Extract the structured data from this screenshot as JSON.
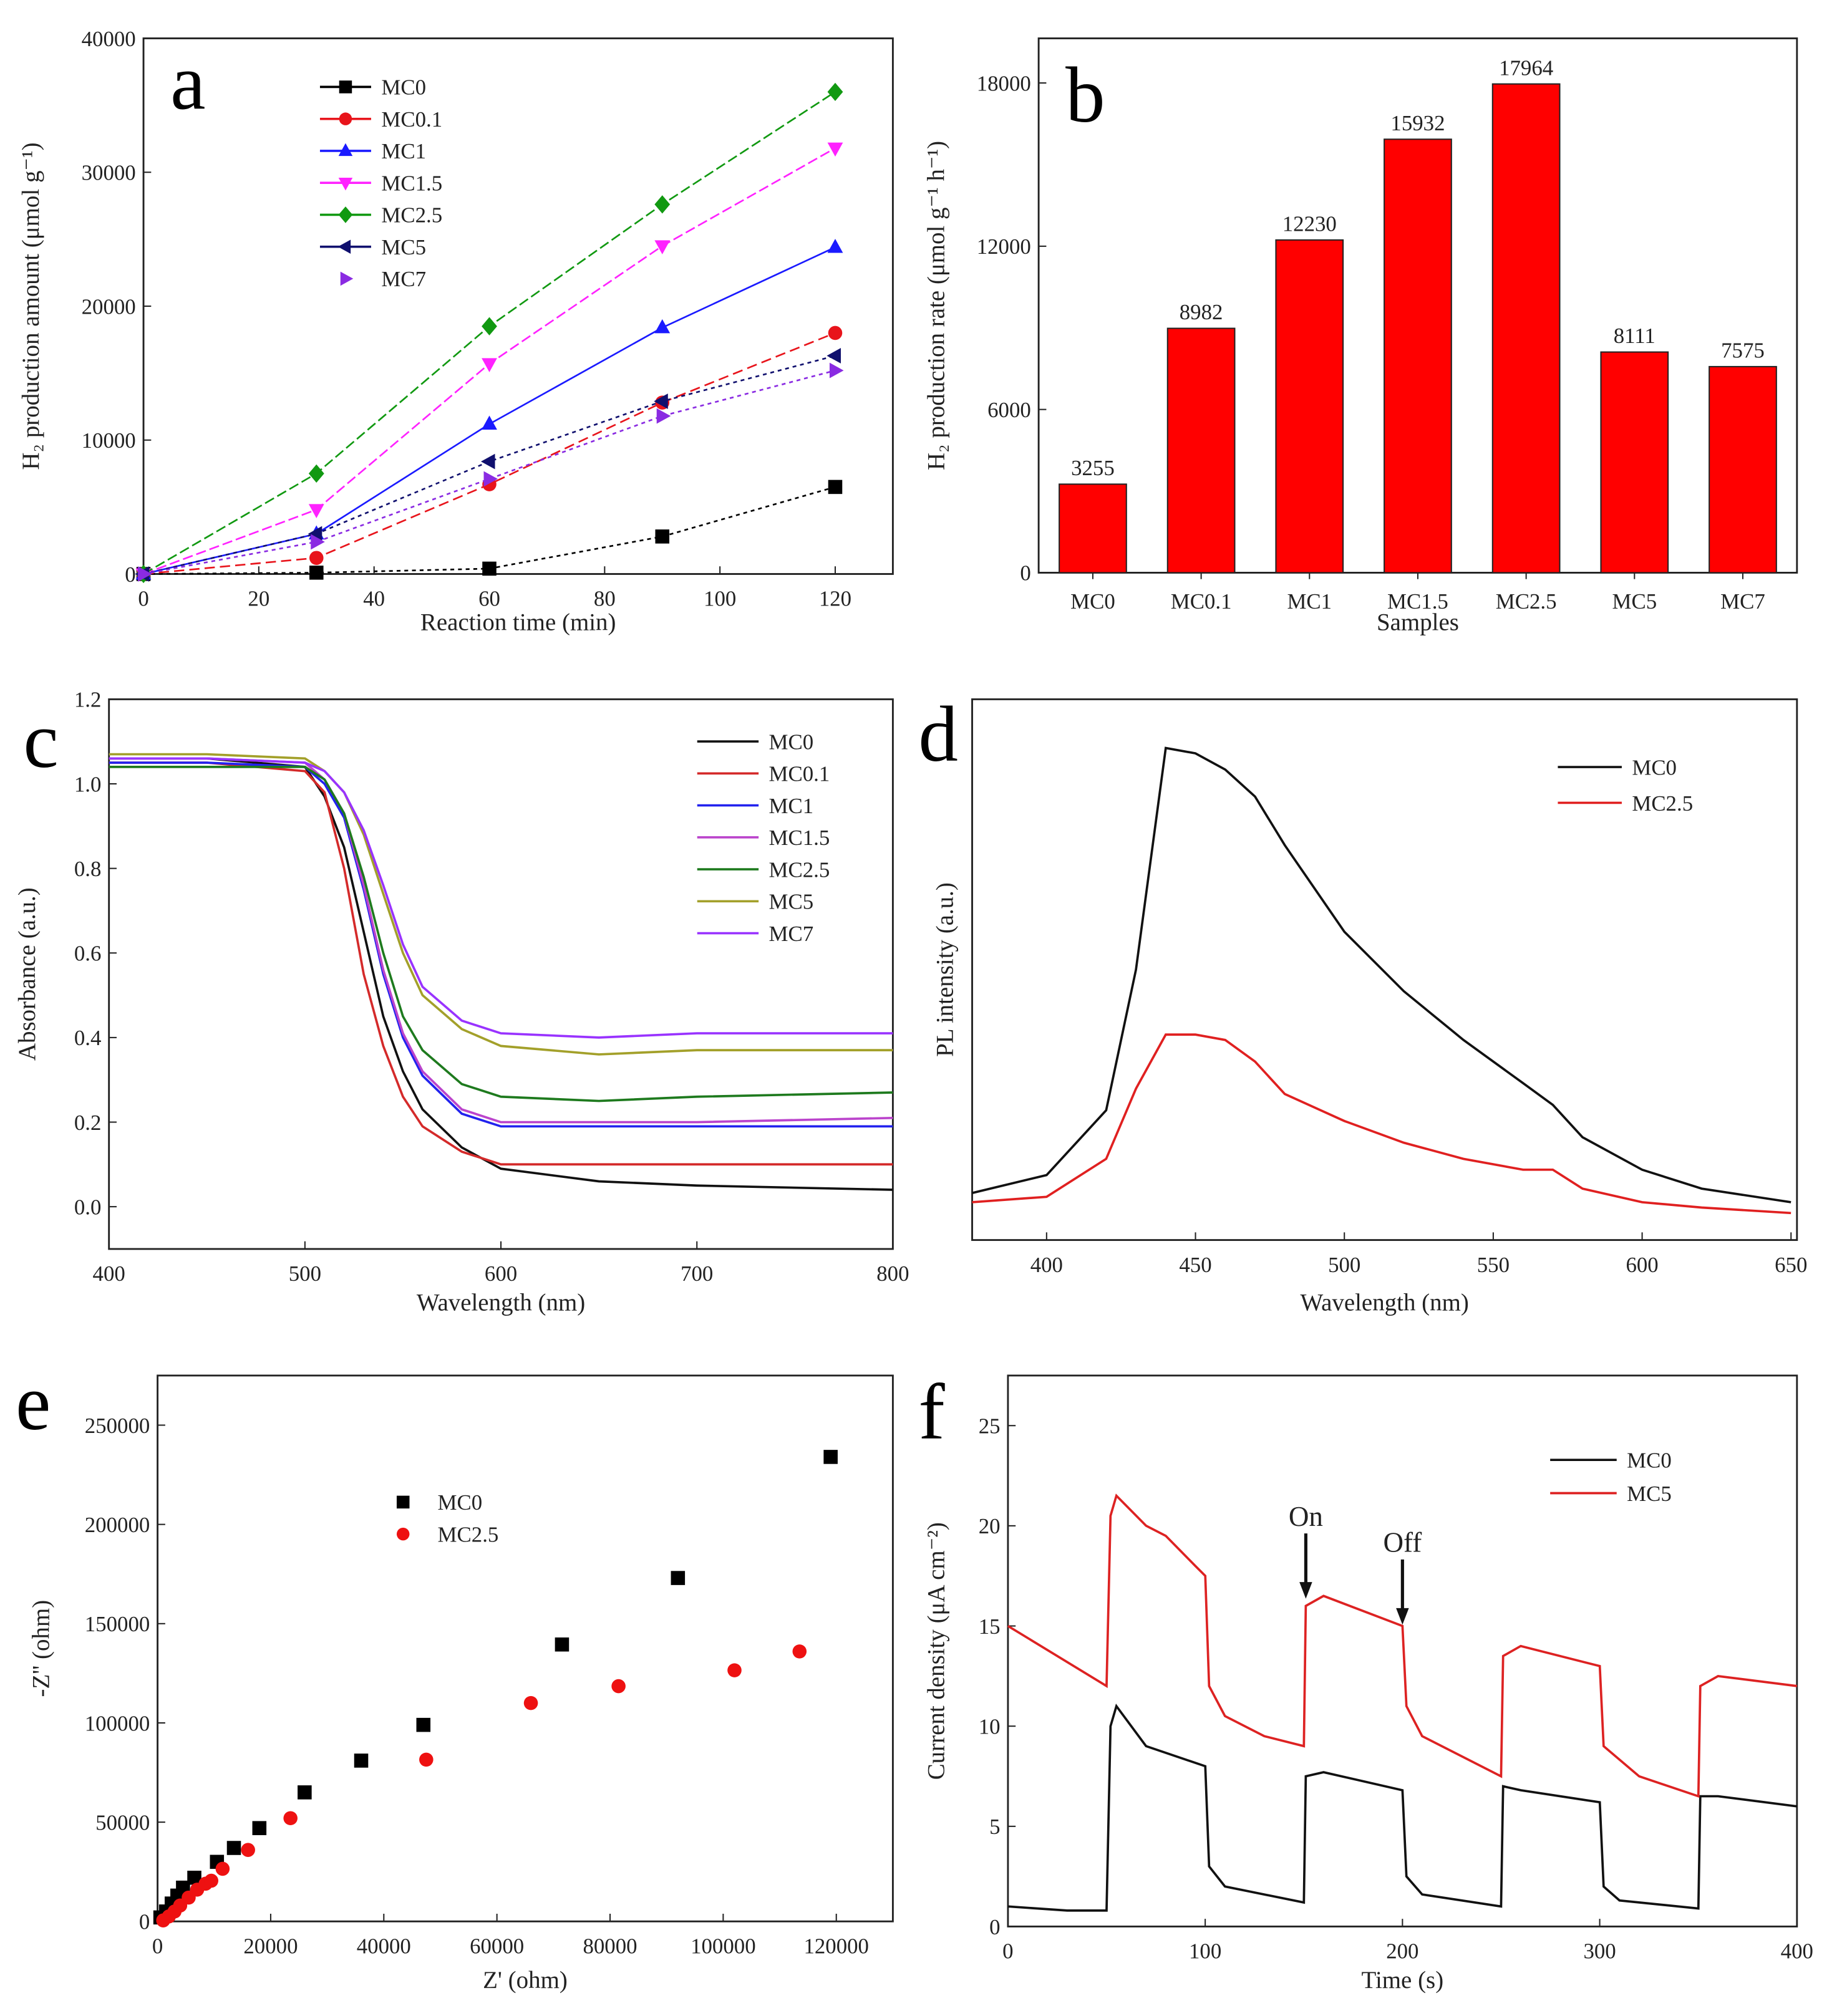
{
  "chart_data": [
    {
      "panel_label": "a",
      "type": "line",
      "xlabel": "Reaction time (min)",
      "ylabel": "H₂ production amount (μmol g⁻¹)",
      "xlim": [
        0,
        130
      ],
      "ylim": [
        0,
        40000
      ],
      "xticks": [
        0,
        20,
        40,
        60,
        80,
        100,
        120
      ],
      "yticks": [
        0,
        10000,
        20000,
        30000,
        40000
      ],
      "x": [
        0,
        30,
        60,
        90,
        120
      ],
      "legend": "top-left",
      "series": [
        {
          "name": "MC0",
          "color": "#000000",
          "marker": "square",
          "dash": "3,3",
          "values": [
            0,
            100,
            400,
            2800,
            6500
          ]
        },
        {
          "name": "MC0.1",
          "color": "#e8141b",
          "marker": "circle",
          "dash": "8,4",
          "values": [
            0,
            1200,
            6700,
            12800,
            18000
          ]
        },
        {
          "name": "MC1",
          "color": "#1a1aff",
          "marker": "triangle-up",
          "dash": "",
          "values": [
            0,
            3000,
            11200,
            18400,
            24400
          ]
        },
        {
          "name": "MC1.5",
          "color": "#ff22ff",
          "marker": "triangle-down",
          "dash": "8,3",
          "values": [
            0,
            4800,
            15700,
            24500,
            31800
          ]
        },
        {
          "name": "MC2.5",
          "color": "#119911",
          "marker": "diamond",
          "dash": "8,3",
          "values": [
            0,
            7500,
            18500,
            27600,
            36000
          ]
        },
        {
          "name": "MC5",
          "color": "#10106e",
          "marker": "triangle-left",
          "dash": "3,3",
          "values": [
            0,
            3000,
            8400,
            12900,
            16300
          ]
        },
        {
          "name": "MC7",
          "color": "#8a2be2",
          "marker": "triangle-right",
          "dash": "3,3",
          "values": [
            0,
            2400,
            7100,
            11800,
            15200
          ]
        }
      ]
    },
    {
      "panel_label": "b",
      "type": "bar",
      "xlabel": "Samples",
      "ylabel": "H₂ production rate (μmol g⁻¹ h⁻¹)",
      "ylim": [
        0,
        19640
      ],
      "yticks": [
        0,
        6000,
        12000,
        18000
      ],
      "categories": [
        "MC0",
        "MC0.1",
        "MC1",
        "MC1.5",
        "MC2.5",
        "MC5",
        "MC7"
      ],
      "values": [
        3255,
        8982,
        12230,
        15932,
        17964,
        8111,
        7575
      ],
      "data_labels": [
        "3255",
        "8982",
        "12230",
        "15932",
        "17964",
        "8111",
        "7575"
      ],
      "bar_color": "#ff0000"
    },
    {
      "panel_label": "c",
      "type": "line",
      "xlabel": "Wavelength (nm)",
      "ylabel": "Absorbance (a.u.)",
      "xlim": [
        400,
        800
      ],
      "ylim": [
        -0.1,
        1.2
      ],
      "xticks": [
        400,
        500,
        600,
        700,
        800
      ],
      "yticks": [
        "0.0",
        "0.2",
        "0.4",
        "0.6",
        "0.8",
        "1.0",
        "1.2"
      ],
      "x": [
        400,
        450,
        500,
        510,
        520,
        530,
        540,
        550,
        560,
        580,
        600,
        650,
        700,
        800
      ],
      "legend": "top-right",
      "series": [
        {
          "name": "MC0",
          "color": "#111111",
          "values": [
            1.06,
            1.06,
            1.04,
            0.97,
            0.85,
            0.65,
            0.45,
            0.32,
            0.23,
            0.14,
            0.09,
            0.06,
            0.05,
            0.04
          ]
        },
        {
          "name": "MC0.1",
          "color": "#d42a2a",
          "values": [
            1.05,
            1.05,
            1.03,
            0.98,
            0.8,
            0.55,
            0.38,
            0.26,
            0.19,
            0.13,
            0.1,
            0.1,
            0.1,
            0.1
          ]
        },
        {
          "name": "MC1",
          "color": "#2222ee",
          "values": [
            1.05,
            1.05,
            1.04,
            1.0,
            0.92,
            0.75,
            0.55,
            0.4,
            0.31,
            0.22,
            0.19,
            0.19,
            0.19,
            0.19
          ]
        },
        {
          "name": "MC1.5",
          "color": "#bb44cc",
          "values": [
            1.06,
            1.06,
            1.05,
            1.01,
            0.93,
            0.76,
            0.56,
            0.41,
            0.32,
            0.23,
            0.2,
            0.2,
            0.2,
            0.21
          ]
        },
        {
          "name": "MC2.5",
          "color": "#1e7a1e",
          "values": [
            1.04,
            1.04,
            1.04,
            1.01,
            0.93,
            0.78,
            0.6,
            0.45,
            0.37,
            0.29,
            0.26,
            0.25,
            0.26,
            0.27
          ]
        },
        {
          "name": "MC5",
          "color": "#a3a02a",
          "values": [
            1.07,
            1.07,
            1.06,
            1.03,
            0.98,
            0.88,
            0.74,
            0.6,
            0.5,
            0.42,
            0.38,
            0.36,
            0.37,
            0.37
          ]
        },
        {
          "name": "MC7",
          "color": "#9933ff",
          "values": [
            1.06,
            1.06,
            1.05,
            1.03,
            0.98,
            0.89,
            0.76,
            0.62,
            0.52,
            0.44,
            0.41,
            0.4,
            0.41,
            0.41
          ]
        }
      ]
    },
    {
      "panel_label": "d",
      "type": "line",
      "xlabel": "Wavelength (nm)",
      "ylabel": "PL intensity (a.u.)",
      "xlim": [
        375,
        652
      ],
      "ylim": [
        0,
        100
      ],
      "xticks": [
        400,
        450,
        500,
        550,
        600,
        650
      ],
      "yticks": [],
      "x": [
        375,
        400,
        420,
        430,
        440,
        450,
        460,
        470,
        480,
        500,
        520,
        540,
        560,
        570,
        580,
        600,
        620,
        650
      ],
      "legend": "top-right",
      "series": [
        {
          "name": "MC0",
          "color": "#111111",
          "values": [
            8.7,
            12,
            24,
            50,
            91,
            90,
            87,
            82,
            73,
            57,
            46,
            37,
            29,
            25,
            19,
            13,
            9.5,
            7
          ]
        },
        {
          "name": "MC2.5",
          "color": "#e02020",
          "values": [
            7,
            8,
            15,
            28,
            38,
            38,
            37,
            33,
            27,
            22,
            18,
            15,
            13,
            13,
            9.5,
            7,
            6,
            5
          ]
        }
      ]
    },
    {
      "panel_label": "e",
      "type": "scatter",
      "xlabel": "Z' (ohm)",
      "ylabel": "-Z'' (ohm)",
      "xlim": [
        0,
        130000
      ],
      "ylim": [
        0,
        275000
      ],
      "xticks": [
        0,
        20000,
        40000,
        60000,
        80000,
        100000,
        120000
      ],
      "yticks": [
        0,
        50000,
        100000,
        150000,
        200000,
        250000
      ],
      "legend": "top-left",
      "series": [
        {
          "name": "MC0",
          "color": "#000000",
          "marker": "square",
          "x": [
            500,
            1500,
            2500,
            3500,
            4500,
            6500,
            10500,
            13500,
            18000,
            26000,
            36000,
            47000,
            71500,
            92000,
            119000
          ],
          "y": [
            2000,
            5000,
            9000,
            13000,
            17000,
            22000,
            30000,
            37000,
            47000,
            65000,
            81000,
            99000,
            139500,
            173000,
            234000
          ]
        },
        {
          "name": "MC2.5",
          "color": "#ee1111",
          "marker": "circle",
          "x": [
            1000,
            2000,
            3000,
            4000,
            5500,
            7000,
            8500,
            9500,
            11500,
            16000,
            23500,
            47500,
            66000,
            81500,
            102000,
            113500
          ],
          "y": [
            500,
            2500,
            5000,
            8000,
            12000,
            16000,
            19000,
            20500,
            26500,
            36000,
            52000,
            81500,
            110000,
            118500,
            126500,
            136000
          ]
        }
      ]
    },
    {
      "panel_label": "f",
      "type": "line",
      "xlabel": "Time (s)",
      "ylabel": "Current density (μA cm⁻²)",
      "xlim": [
        0,
        400
      ],
      "ylim": [
        0,
        27.5
      ],
      "xticks": [
        0,
        100,
        200,
        300,
        400
      ],
      "yticks": [
        0,
        5,
        10,
        15,
        20,
        25
      ],
      "legend": "top-right",
      "annotations": [
        {
          "text": "On",
          "x": 151,
          "y": 16.3
        },
        {
          "text": "Off",
          "x": 200,
          "y": 15
        }
      ],
      "series": [
        {
          "name": "MC0",
          "color": "#111111",
          "x": [
            0,
            30,
            50,
            52,
            55,
            70,
            100,
            102,
            110,
            150,
            151,
            160,
            200,
            202,
            210,
            250,
            251,
            260,
            300,
            302,
            310,
            350,
            351,
            360,
            400
          ],
          "values": [
            1,
            0.8,
            0.8,
            10,
            11,
            9,
            8,
            3,
            2,
            1.2,
            7.5,
            7.7,
            6.8,
            2.5,
            1.6,
            1,
            7,
            6.8,
            6.2,
            2,
            1.3,
            0.9,
            6.5,
            6.5,
            6
          ]
        },
        {
          "name": "MC5",
          "color": "#dd2222",
          "x": [
            0,
            50,
            52,
            55,
            70,
            80,
            95,
            100,
            102,
            110,
            130,
            150,
            151,
            160,
            200,
            202,
            210,
            250,
            251,
            260,
            300,
            302,
            320,
            350,
            351,
            360,
            400
          ],
          "values": [
            15,
            12,
            20.5,
            21.5,
            20,
            19.5,
            18,
            17.5,
            12,
            10.5,
            9.5,
            9,
            16,
            16.5,
            15,
            11,
            9.5,
            7.5,
            13.5,
            14,
            13,
            9,
            7.5,
            6.5,
            12,
            12.5,
            12
          ]
        }
      ]
    }
  ]
}
